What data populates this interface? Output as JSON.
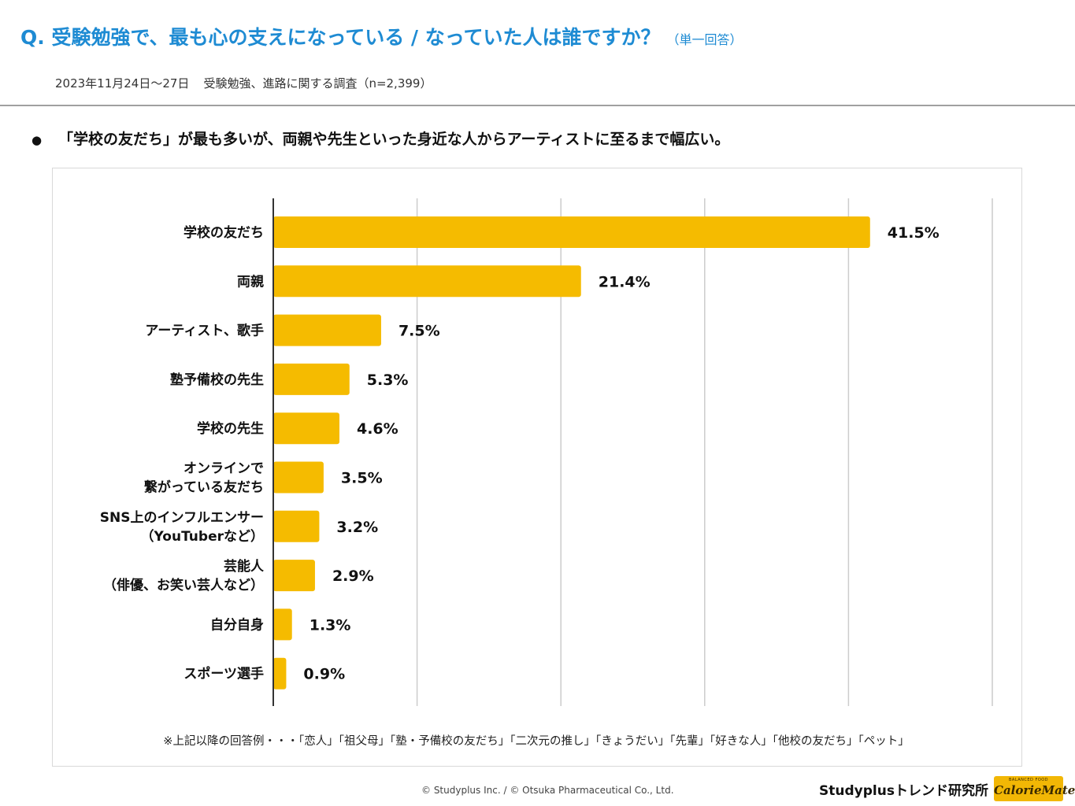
{
  "header": {
    "question": "Q. 受験勉強で、最も心の支えになっている / なっていた人は誰ですか？",
    "question_note": "（単一回答）",
    "survey_date": "2023年11月24日～27日",
    "survey_name": "受験勉強、進路に関する調査（n=2,399）"
  },
  "summary": {
    "bullet": "●",
    "text": "「学校の友だち」が最も多いが、両親や先生といった身近な人からアーティストに至るまで幅広い。"
  },
  "chart_data": {
    "type": "bar",
    "orientation": "horizontal",
    "categories": [
      [
        "学校の友だち"
      ],
      [
        "両親"
      ],
      [
        "アーティスト、歌手"
      ],
      [
        "塾予備校の先生"
      ],
      [
        "学校の先生"
      ],
      [
        "オンラインで",
        "繋がっている友だち"
      ],
      [
        "SNS上のインフルエンサー",
        "（YouTuberなど）"
      ],
      [
        "芸能人",
        "（俳優、お笑い芸人など）"
      ],
      [
        "自分自身"
      ],
      [
        "スポーツ選手"
      ]
    ],
    "values": [
      41.5,
      21.4,
      7.5,
      5.3,
      4.6,
      3.5,
      3.2,
      2.9,
      1.3,
      0.9
    ],
    "value_labels": [
      "41.5%",
      "21.4%",
      "7.5%",
      "5.3%",
      "4.6%",
      "3.5%",
      "3.2%",
      "2.9%",
      "1.3%",
      "0.9%"
    ],
    "xlim": [
      0,
      50
    ],
    "gridlines": [
      10,
      20,
      30,
      40,
      50
    ],
    "bar_color": "#f5bb00",
    "grid_color": "#cccccc",
    "title": "",
    "xlabel": "",
    "ylabel": ""
  },
  "footnote": "※上記以降の回答例・・・「恋人」「祖父母」「塾・予備校の友だち」「二次元の推し」「きょうだい」「先輩」「好きな人」「他校の友だち」「ペット」",
  "footer": {
    "copyright": "© Studyplus Inc.  / © Otsuka Pharmaceutical Co., Ltd.",
    "brand": "Studyplusトレンド研究所",
    "logo_small": "BALANCED FOOD",
    "logo_text": "CalorieMate"
  }
}
